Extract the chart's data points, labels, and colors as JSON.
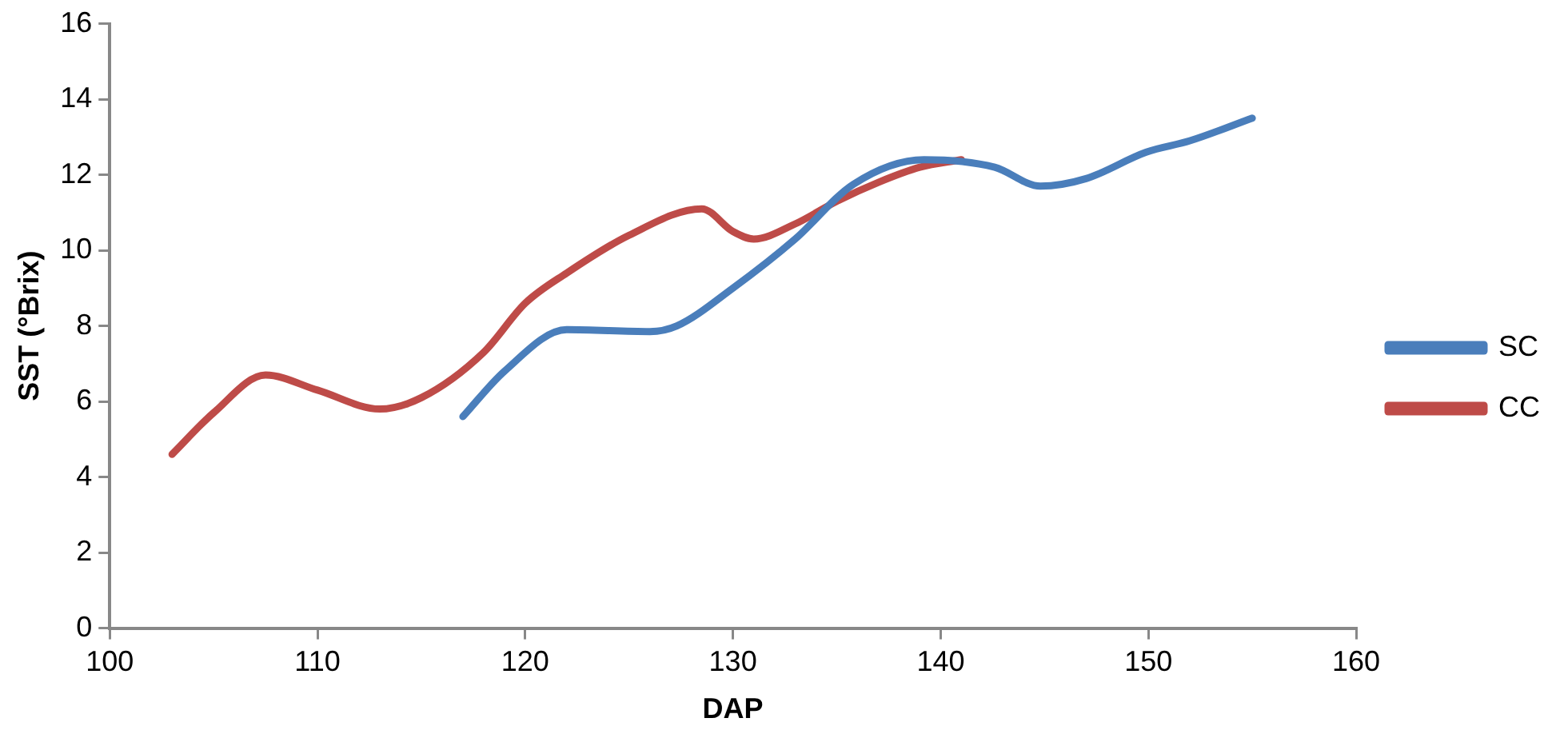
{
  "chart_data": {
    "type": "line",
    "xlabel": "DAP",
    "ylabel": "SST (°Brix)",
    "xlim": [
      100,
      160
    ],
    "xticks": [
      100,
      110,
      120,
      130,
      140,
      150,
      160
    ],
    "ylim": [
      0,
      16
    ],
    "yticks": [
      0,
      2,
      4,
      6,
      8,
      10,
      12,
      14,
      16
    ],
    "grid": false,
    "legend": "right",
    "marker": "none",
    "line_style": "solid",
    "series": [
      {
        "name": "SC",
        "color": "#4a7ebb",
        "x": [
          117,
          119,
          122,
          126,
          127.3,
          130,
          133,
          135.8,
          139.2,
          142.6,
          144.8,
          147,
          149.9,
          152,
          155
        ],
        "values": [
          5.6,
          6.8,
          7.9,
          7.85,
          8.0,
          9.0,
          10.3,
          11.75,
          12.4,
          12.2,
          11.7,
          11.9,
          12.6,
          12.9,
          13.5
        ]
      },
      {
        "name": "CC",
        "color": "#be4b48",
        "x": [
          103,
          105,
          107.5,
          110,
          113,
          115,
          118,
          120,
          122,
          125,
          128.5,
          130,
          131,
          133,
          135,
          137,
          139,
          141
        ],
        "values": [
          4.6,
          5.7,
          6.7,
          6.3,
          5.8,
          6.1,
          7.3,
          8.6,
          9.4,
          10.4,
          11.1,
          10.5,
          10.3,
          10.7,
          11.3,
          11.8,
          12.2,
          12.4
        ]
      }
    ]
  }
}
